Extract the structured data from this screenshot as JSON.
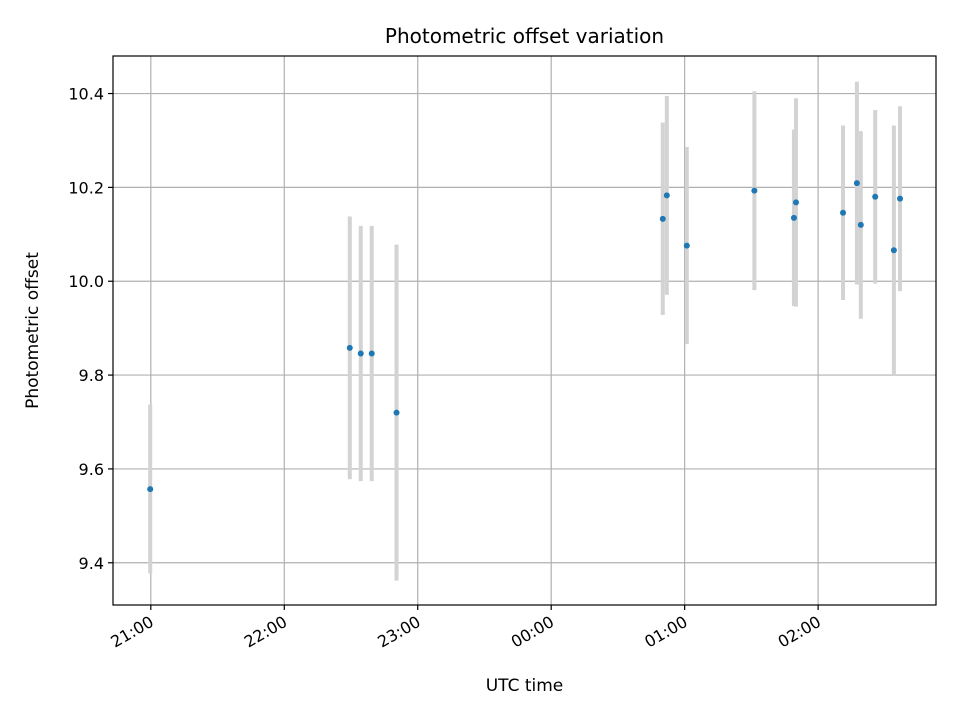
{
  "chart_data": {
    "type": "scatter",
    "title": "Photometric offset variation",
    "xlabel": "UTC time",
    "ylabel": "Photometric offset",
    "x_axis": {
      "kind": "time",
      "range": [
        "2024-01-01T20:43:00",
        "2024-01-02T02:53:00"
      ],
      "ticks": [
        {
          "value": "2024-01-01T21:00:00",
          "label": "21:00"
        },
        {
          "value": "2024-01-01T22:00:00",
          "label": "22:00"
        },
        {
          "value": "2024-01-01T23:00:00",
          "label": "23:00"
        },
        {
          "value": "2024-01-02T00:00:00",
          "label": "00:00"
        },
        {
          "value": "2024-01-02T01:00:00",
          "label": "01:00"
        },
        {
          "value": "2024-01-02T02:00:00",
          "label": "02:00"
        }
      ]
    },
    "y_axis": {
      "range": [
        9.31,
        10.48
      ],
      "ticks": [
        {
          "value": 9.4,
          "label": "9.4"
        },
        {
          "value": 9.6,
          "label": "9.6"
        },
        {
          "value": 9.8,
          "label": "9.8"
        },
        {
          "value": 10.0,
          "label": "10.0"
        },
        {
          "value": 10.2,
          "label": "10.2"
        },
        {
          "value": 10.4,
          "label": "10.4"
        }
      ]
    },
    "grid": true,
    "point_color": "#1f77b4",
    "errorbar_color": "#d3d3d3",
    "points": [
      {
        "x": "2024-01-01T20:59:44",
        "y": 9.557,
        "err": 0.18
      },
      {
        "x": "2024-01-01T22:29:27",
        "y": 9.858,
        "err": 0.28
      },
      {
        "x": "2024-01-01T22:34:23",
        "y": 9.846,
        "err": 0.272
      },
      {
        "x": "2024-01-01T22:39:19",
        "y": 9.846,
        "err": 0.272
      },
      {
        "x": "2024-01-01T22:50:28",
        "y": 9.72,
        "err": 0.358
      },
      {
        "x": "2024-01-02T00:50:10",
        "y": 10.133,
        "err": 0.205
      },
      {
        "x": "2024-01-02T00:51:59",
        "y": 10.183,
        "err": 0.212
      },
      {
        "x": "2024-01-02T01:00:58",
        "y": 10.076,
        "err": 0.21
      },
      {
        "x": "2024-01-02T01:31:21",
        "y": 10.193,
        "err": 0.212
      },
      {
        "x": "2024-01-02T01:49:08",
        "y": 10.135,
        "err": 0.188
      },
      {
        "x": "2024-01-02T01:50:03",
        "y": 10.168,
        "err": 0.222
      },
      {
        "x": "2024-01-02T02:11:12",
        "y": 10.146,
        "err": 0.186
      },
      {
        "x": "2024-01-02T02:17:26",
        "y": 10.209,
        "err": 0.216
      },
      {
        "x": "2024-01-02T02:19:12",
        "y": 10.12,
        "err": 0.2
      },
      {
        "x": "2024-01-02T02:25:40",
        "y": 10.18,
        "err": 0.185
      },
      {
        "x": "2024-01-02T02:34:04",
        "y": 10.066,
        "err": 0.266
      },
      {
        "x": "2024-01-02T02:36:50",
        "y": 10.176,
        "err": 0.197
      }
    ]
  }
}
